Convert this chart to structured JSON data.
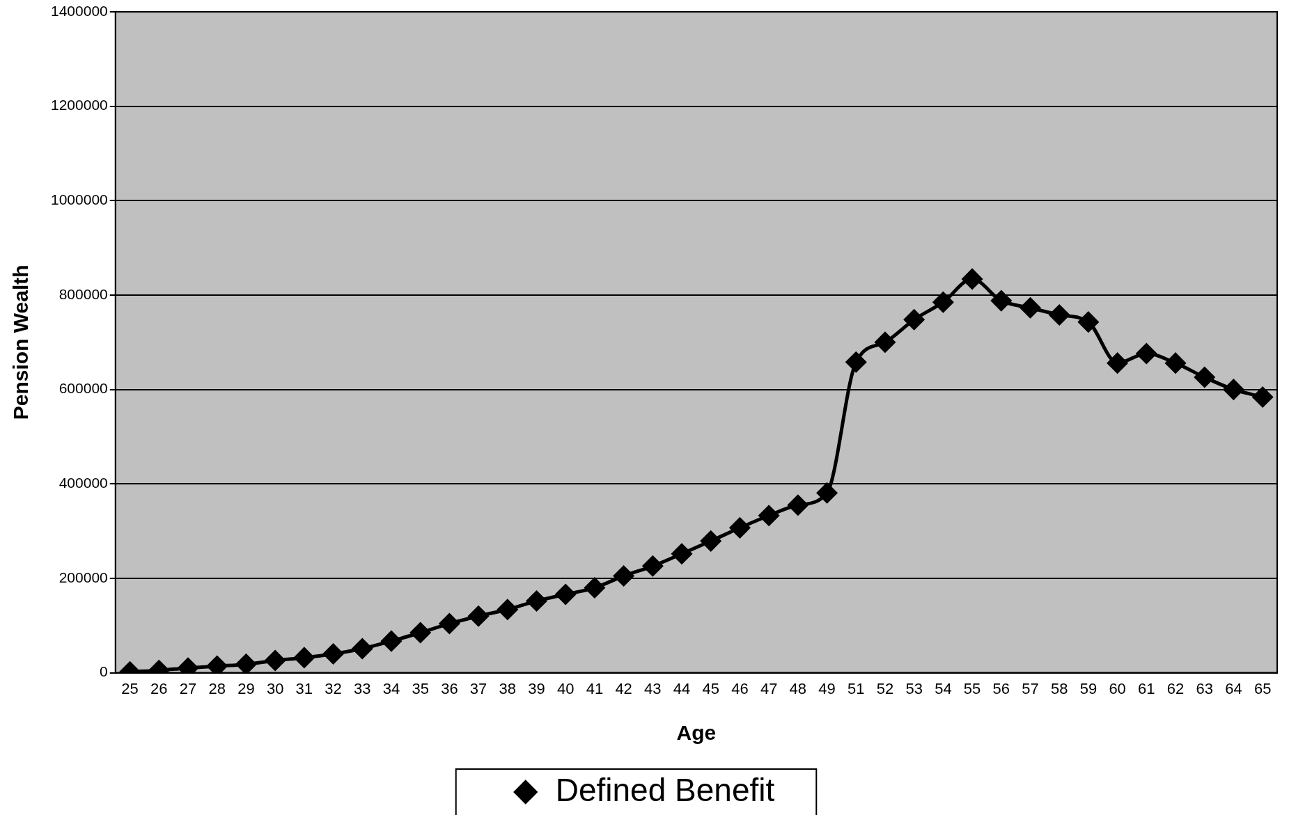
{
  "chart_data": {
    "type": "line",
    "xlabel": "Age",
    "ylabel": "Pension Wealth",
    "categories": [
      "25",
      "26",
      "27",
      "28",
      "29",
      "30",
      "31",
      "32",
      "33",
      "34",
      "35",
      "36",
      "37",
      "38",
      "39",
      "40",
      "41",
      "42",
      "43",
      "44",
      "45",
      "46",
      "47",
      "48",
      "49",
      "51",
      "52",
      "53",
      "54",
      "55",
      "56",
      "57",
      "58",
      "59",
      "60",
      "61",
      "62",
      "63",
      "64",
      "65"
    ],
    "series": [
      {
        "name": "Defined Benefit",
        "color": "#000000",
        "values": [
          2000,
          5000,
          10000,
          14000,
          18000,
          26000,
          32000,
          40000,
          51000,
          67000,
          85000,
          104000,
          120000,
          134000,
          152000,
          166000,
          180000,
          205000,
          226000,
          252000,
          279000,
          307000,
          333000,
          355000,
          381000,
          658000,
          700000,
          748000,
          785000,
          834000,
          788000,
          773000,
          758000,
          743000,
          656000,
          676000,
          656000,
          626000,
          600000,
          584000
        ]
      }
    ],
    "ylim": [
      0,
      1400000
    ],
    "yticks": [
      0,
      200000,
      400000,
      600000,
      800000,
      1000000,
      1200000,
      1400000
    ],
    "grid": "y",
    "legend": "bottom",
    "marker": "diamond",
    "line_style": "solid"
  }
}
